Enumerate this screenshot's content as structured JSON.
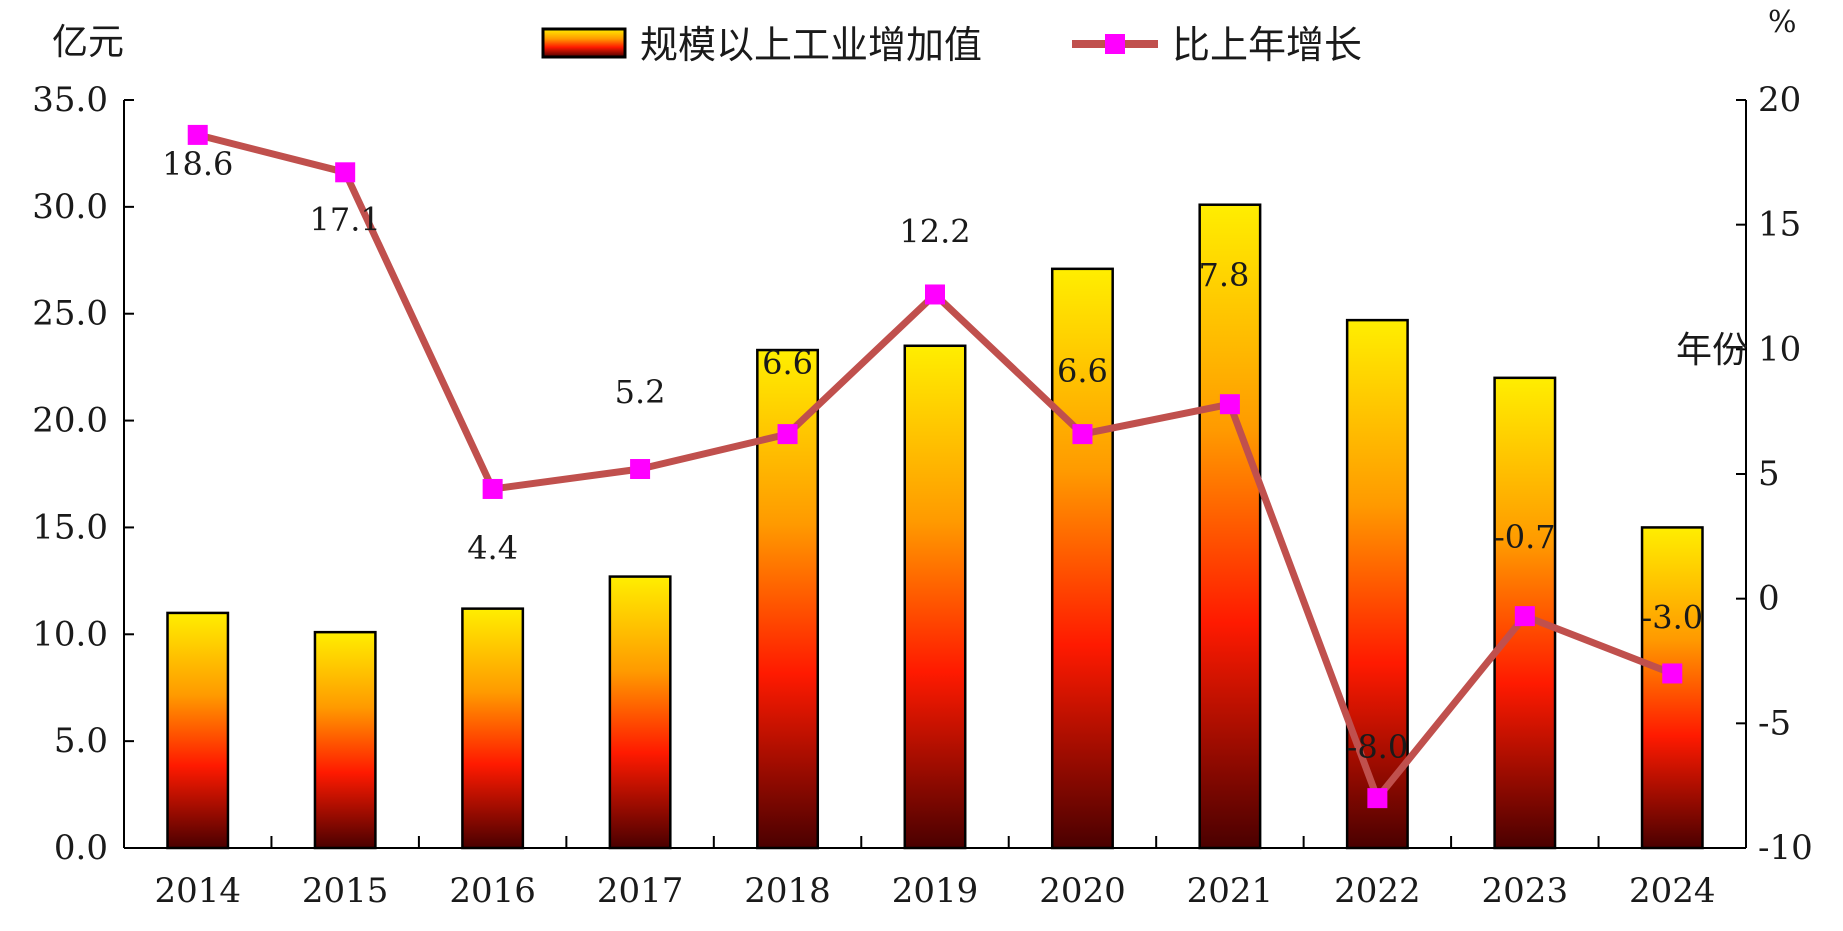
{
  "chart_data": {
    "type": "bar+line",
    "categories": [
      "2014",
      "2015",
      "2016",
      "2017",
      "2018",
      "2019",
      "2020",
      "2021",
      "2022",
      "2023",
      "2024"
    ],
    "series": [
      {
        "name": "规模以上工业增加值",
        "type": "bar",
        "axis": "left",
        "values": [
          11.0,
          10.1,
          11.2,
          12.7,
          23.3,
          23.5,
          27.1,
          30.1,
          24.7,
          22.0,
          15.0
        ]
      },
      {
        "name": "比上年增长",
        "type": "line",
        "axis": "right",
        "values": [
          18.6,
          17.1,
          4.4,
          5.2,
          6.6,
          12.2,
          6.6,
          7.8,
          -8.0,
          -0.7,
          -3.0
        ],
        "labels": [
          "18.6",
          "17.1",
          "4.4",
          "5.2",
          "6.6",
          "12.2",
          "6.6",
          "7.8",
          "-8.0",
          "-0.7",
          "-3.0"
        ]
      }
    ],
    "y_left": {
      "unit": "亿元",
      "ylim": [
        0,
        35
      ],
      "ticks": [
        "0.0",
        "5.0",
        "10.0",
        "15.0",
        "20.0",
        "25.0",
        "30.0",
        "35.0"
      ]
    },
    "y_right": {
      "unit": "%",
      "ylim": [
        -10,
        20
      ],
      "ticks": [
        "-10",
        "-5",
        "0",
        "5",
        "10",
        "15",
        "20"
      ]
    },
    "x_label": "年份",
    "legend_position": "top-center",
    "grid": false,
    "colors": {
      "bar_top": "#ffee00",
      "bar_mid": "#ff7a00",
      "bar_low": "#ff1a00",
      "bar_bottom": "#4a0000",
      "line": "#c0504d",
      "marker": "#ff00ff",
      "axis": "#000000"
    }
  }
}
